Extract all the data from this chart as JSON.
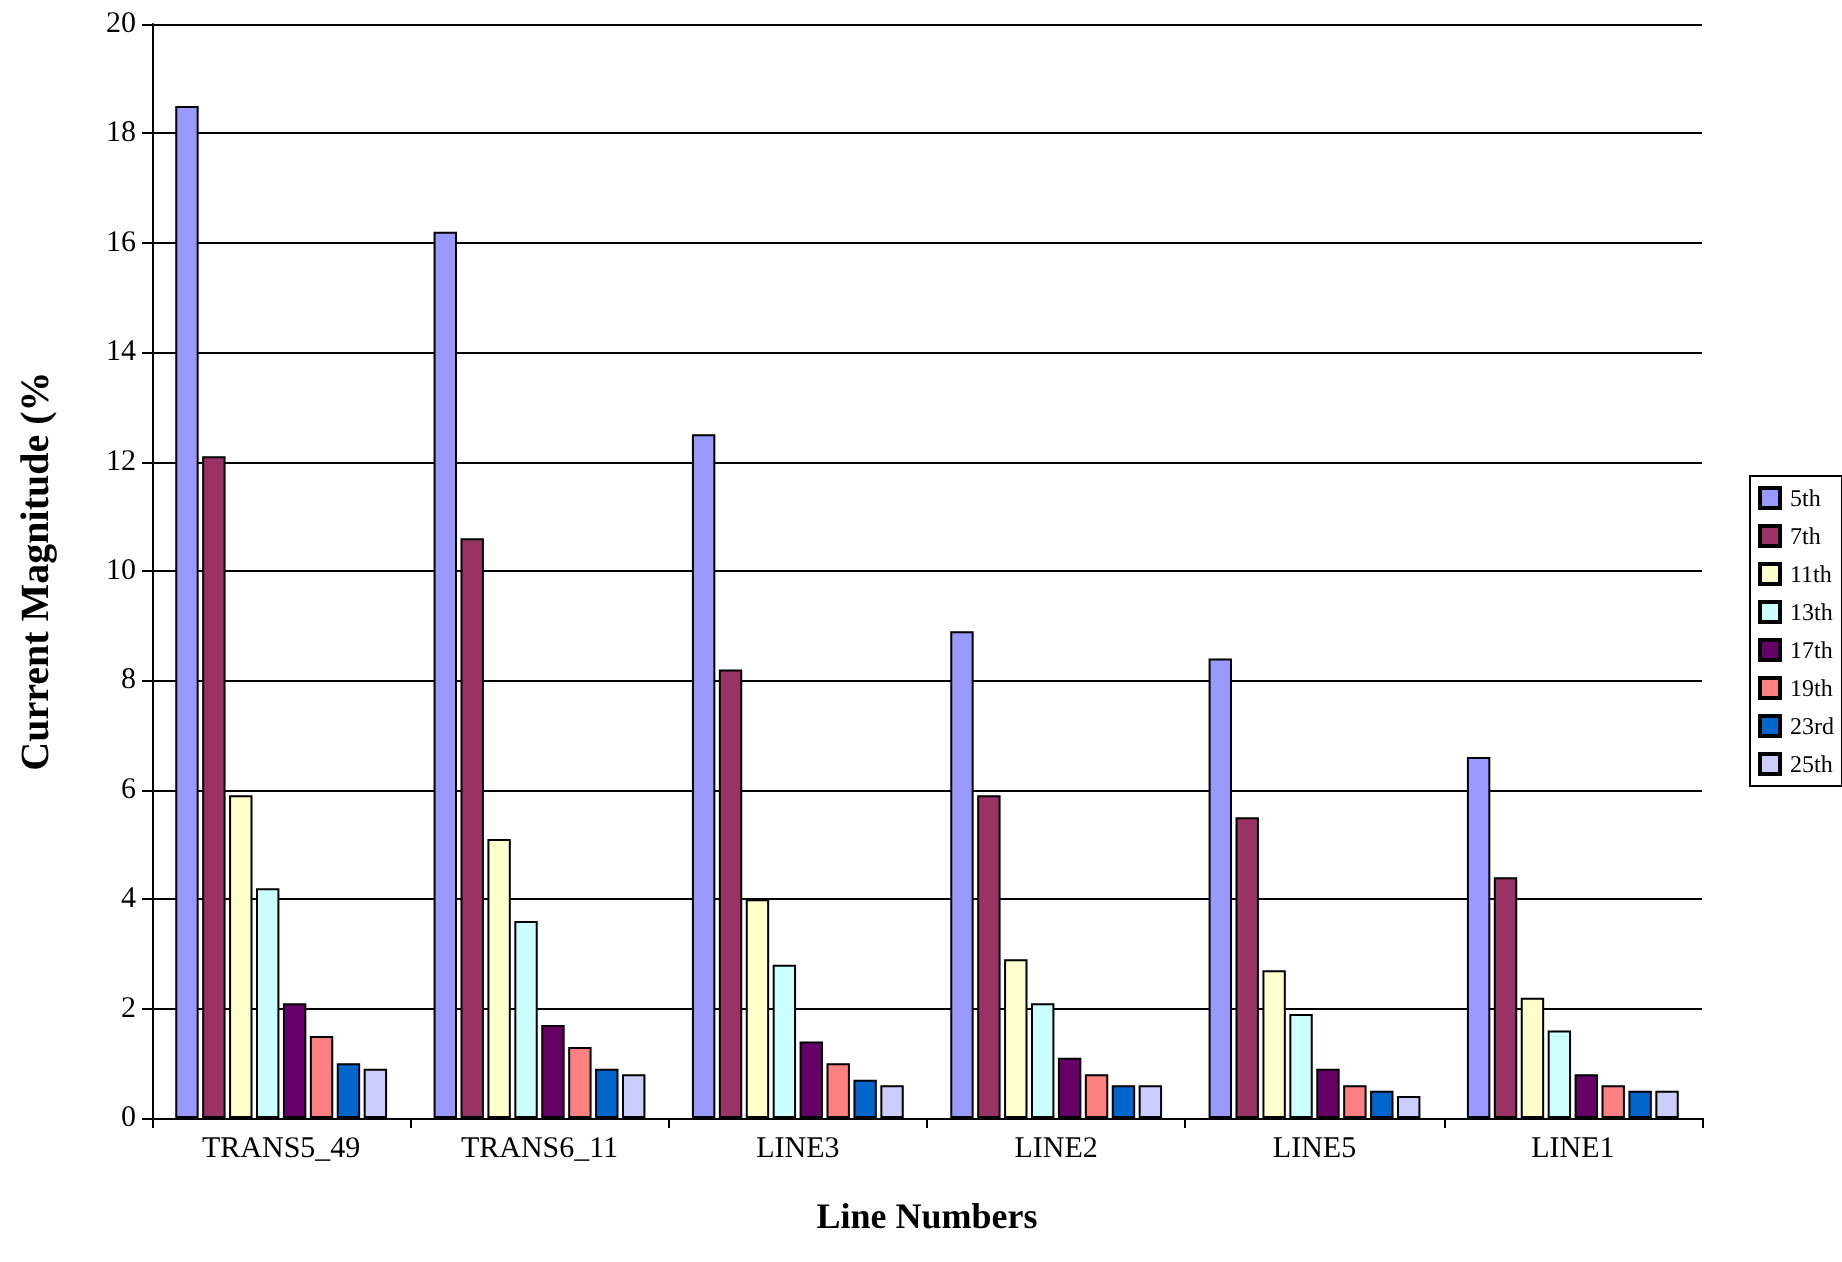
{
  "chart_data": {
    "type": "bar",
    "xlabel": "Line Numbers",
    "ylabel": "Current Magnitude (%",
    "categories": [
      "TRANS5_49",
      "TRANS6_11",
      "LINE3",
      "LINE2",
      "LINE5",
      "LINE1"
    ],
    "series": [
      {
        "name": "5th",
        "color": "#9999ff",
        "values": [
          18.5,
          16.2,
          12.5,
          8.9,
          8.4,
          6.6
        ]
      },
      {
        "name": "7th",
        "color": "#993366",
        "values": [
          12.1,
          10.6,
          8.2,
          5.9,
          5.5,
          4.4
        ]
      },
      {
        "name": "11th",
        "color": "#ffffcc",
        "values": [
          5.9,
          5.1,
          4.0,
          2.9,
          2.7,
          2.2
        ]
      },
      {
        "name": "13th",
        "color": "#ccffff",
        "values": [
          4.2,
          3.6,
          2.8,
          2.1,
          1.9,
          1.6
        ]
      },
      {
        "name": "17th",
        "color": "#660066",
        "values": [
          2.1,
          1.7,
          1.4,
          1.1,
          0.9,
          0.8
        ]
      },
      {
        "name": "19th",
        "color": "#ff8080",
        "values": [
          1.5,
          1.3,
          1.0,
          0.8,
          0.6,
          0.6
        ]
      },
      {
        "name": "23rd",
        "color": "#0066cc",
        "values": [
          1.0,
          0.9,
          0.7,
          0.6,
          0.5,
          0.5
        ]
      },
      {
        "name": "25th",
        "color": "#ccccff",
        "values": [
          0.9,
          0.8,
          0.6,
          0.6,
          0.4,
          0.5
        ]
      }
    ],
    "ylim": [
      0,
      20
    ],
    "yticks": [
      0,
      2,
      4,
      6,
      8,
      10,
      12,
      14,
      16,
      18,
      20
    ],
    "grid": "y",
    "legend": "right"
  }
}
